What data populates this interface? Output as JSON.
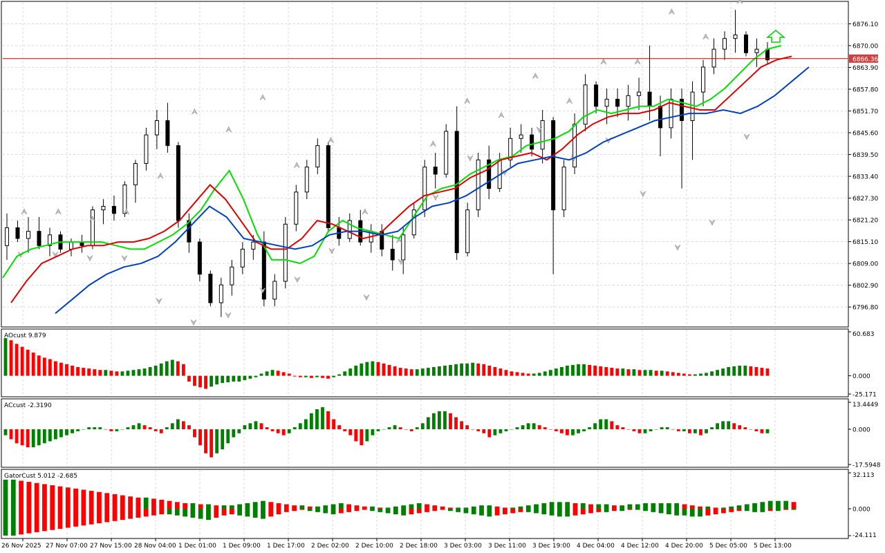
{
  "chart_data": [
    {
      "type": "candlestick",
      "pane": "main",
      "ylim": [
        6791.6,
        6882.0
      ],
      "price_ticks": [
        "6876.10",
        "6870.00",
        "6863.90",
        "6857.80",
        "6851.70",
        "6845.60",
        "6839.50",
        "6833.40",
        "6827.30",
        "6821.20",
        "6815.10",
        "6809.00",
        "6802.90",
        "6796.80"
      ],
      "current_price": "6866.36",
      "grid": true,
      "series": [
        {
          "name": "",
          "color": "#00e000",
          "values": [
            6805,
            6811,
            6813,
            6814,
            6815,
            6815,
            6815,
            6815,
            6814,
            6813,
            6813,
            6815,
            6817,
            6820,
            6824,
            6830,
            6835,
            6827,
            6817,
            6810,
            6810,
            6809,
            6811,
            6818,
            6821,
            6819,
            6818,
            6817,
            6816,
            6822,
            6828,
            6830,
            6831,
            6834,
            6836,
            6838,
            6839,
            6842,
            6843,
            6844,
            6846,
            6850,
            6852,
            6851,
            6852,
            6853,
            6853,
            6855,
            6854,
            6853,
            6855,
            6858,
            6862,
            6866,
            6869,
            6870
          ]
        },
        {
          "name": "",
          "color": "#e00000",
          "values": [
            6798,
            6804,
            6809,
            6811,
            6813,
            6814,
            6814,
            6815,
            6815,
            6816,
            6818,
            6821,
            6826,
            6831,
            6827,
            6821,
            6815,
            6813,
            6813,
            6816,
            6821,
            6820,
            6818,
            6816,
            6817,
            6821,
            6825,
            6828,
            6829,
            6830,
            6833,
            6835,
            6838,
            6839,
            6840,
            6838,
            6841,
            6845,
            6848,
            6850,
            6851,
            6851,
            6852,
            6854,
            6853,
            6852,
            6852,
            6856,
            6860,
            6864,
            6866,
            6867
          ]
        },
        {
          "name": "",
          "color": "#0040c0",
          "values": [
            6795,
            6799,
            6803,
            6806,
            6808,
            6809,
            6811,
            6815,
            6820,
            6825,
            6822,
            6816,
            6815,
            6814,
            6813,
            6814,
            6817,
            6818,
            6818,
            6817,
            6818,
            6822,
            6825,
            6826,
            6828,
            6831,
            6834,
            6837,
            6838,
            6839,
            6838,
            6840,
            6843,
            6845,
            6847,
            6849,
            6850,
            6851,
            6851,
            6852,
            6851,
            6853,
            6856,
            6860,
            6864
          ]
        }
      ],
      "candles": [
        {
          "o": 6814,
          "h": 6823,
          "l": 6810,
          "c": 6819
        },
        {
          "o": 6819,
          "h": 6821,
          "l": 6815,
          "c": 6816
        },
        {
          "o": 6816,
          "h": 6822,
          "l": 6812,
          "c": 6818
        },
        {
          "o": 6818,
          "h": 6822,
          "l": 6813,
          "c": 6814
        },
        {
          "o": 6814,
          "h": 6819,
          "l": 6811,
          "c": 6817
        },
        {
          "o": 6817,
          "h": 6818,
          "l": 6812,
          "c": 6813
        },
        {
          "o": 6813,
          "h": 6816,
          "l": 6811,
          "c": 6815
        },
        {
          "o": 6815,
          "h": 6817,
          "l": 6812,
          "c": 6814
        },
        {
          "o": 6814,
          "h": 6825,
          "l": 6813,
          "c": 6824
        },
        {
          "o": 6824,
          "h": 6827,
          "l": 6820,
          "c": 6825
        },
        {
          "o": 6825,
          "h": 6828,
          "l": 6821,
          "c": 6823
        },
        {
          "o": 6823,
          "h": 6832,
          "l": 6822,
          "c": 6831
        },
        {
          "o": 6831,
          "h": 6838,
          "l": 6826,
          "c": 6837
        },
        {
          "o": 6837,
          "h": 6847,
          "l": 6835,
          "c": 6845
        },
        {
          "o": 6845,
          "h": 6852,
          "l": 6841,
          "c": 6849
        },
        {
          "o": 6849,
          "h": 6854,
          "l": 6840,
          "c": 6842
        },
        {
          "o": 6842,
          "h": 6843,
          "l": 6819,
          "c": 6821
        },
        {
          "o": 6821,
          "h": 6823,
          "l": 6812,
          "c": 6815
        },
        {
          "o": 6815,
          "h": 6816,
          "l": 6804,
          "c": 6806
        },
        {
          "o": 6806,
          "h": 6807,
          "l": 6797,
          "c": 6798
        },
        {
          "o": 6798,
          "h": 6805,
          "l": 6794,
          "c": 6803
        },
        {
          "o": 6803,
          "h": 6810,
          "l": 6800,
          "c": 6808
        },
        {
          "o": 6808,
          "h": 6815,
          "l": 6806,
          "c": 6813
        },
        {
          "o": 6813,
          "h": 6817,
          "l": 6810,
          "c": 6815
        },
        {
          "o": 6815,
          "h": 6818,
          "l": 6797,
          "c": 6799
        },
        {
          "o": 6799,
          "h": 6806,
          "l": 6797,
          "c": 6804
        },
        {
          "o": 6804,
          "h": 6822,
          "l": 6802,
          "c": 6820
        },
        {
          "o": 6820,
          "h": 6831,
          "l": 6818,
          "c": 6829
        },
        {
          "o": 6829,
          "h": 6838,
          "l": 6827,
          "c": 6836
        },
        {
          "o": 6836,
          "h": 6844,
          "l": 6834,
          "c": 6842
        },
        {
          "o": 6842,
          "h": 6843,
          "l": 6818,
          "c": 6819
        },
        {
          "o": 6819,
          "h": 6822,
          "l": 6814,
          "c": 6816
        },
        {
          "o": 6816,
          "h": 6823,
          "l": 6815,
          "c": 6821
        },
        {
          "o": 6821,
          "h": 6824,
          "l": 6814,
          "c": 6815
        },
        {
          "o": 6815,
          "h": 6820,
          "l": 6812,
          "c": 6818
        },
        {
          "o": 6818,
          "h": 6820,
          "l": 6811,
          "c": 6813
        },
        {
          "o": 6813,
          "h": 6817,
          "l": 6807,
          "c": 6810
        },
        {
          "o": 6810,
          "h": 6819,
          "l": 6806,
          "c": 6817
        },
        {
          "o": 6817,
          "h": 6826,
          "l": 6816,
          "c": 6824
        },
        {
          "o": 6824,
          "h": 6838,
          "l": 6822,
          "c": 6836
        },
        {
          "o": 6836,
          "h": 6840,
          "l": 6830,
          "c": 6834
        },
        {
          "o": 6834,
          "h": 6848,
          "l": 6833,
          "c": 6846
        },
        {
          "o": 6846,
          "h": 6853,
          "l": 6810,
          "c": 6812
        },
        {
          "o": 6812,
          "h": 6826,
          "l": 6811,
          "c": 6824
        },
        {
          "o": 6824,
          "h": 6840,
          "l": 6822,
          "c": 6838
        },
        {
          "o": 6838,
          "h": 6842,
          "l": 6827,
          "c": 6830
        },
        {
          "o": 6830,
          "h": 6840,
          "l": 6829,
          "c": 6838
        },
        {
          "o": 6838,
          "h": 6847,
          "l": 6836,
          "c": 6844
        },
        {
          "o": 6844,
          "h": 6848,
          "l": 6840,
          "c": 6845
        },
        {
          "o": 6845,
          "h": 6847,
          "l": 6839,
          "c": 6841
        },
        {
          "o": 6841,
          "h": 6852,
          "l": 6837,
          "c": 6849
        },
        {
          "o": 6849,
          "h": 6850,
          "l": 6806,
          "c": 6824
        },
        {
          "o": 6824,
          "h": 6838,
          "l": 6822,
          "c": 6836
        },
        {
          "o": 6836,
          "h": 6851,
          "l": 6834,
          "c": 6848
        },
        {
          "o": 6848,
          "h": 6862,
          "l": 6846,
          "c": 6859
        },
        {
          "o": 6859,
          "h": 6860,
          "l": 6851,
          "c": 6853
        },
        {
          "o": 6853,
          "h": 6858,
          "l": 6848,
          "c": 6855
        },
        {
          "o": 6855,
          "h": 6858,
          "l": 6850,
          "c": 6853
        },
        {
          "o": 6853,
          "h": 6859,
          "l": 6849,
          "c": 6856
        },
        {
          "o": 6856,
          "h": 6861,
          "l": 6852,
          "c": 6857
        },
        {
          "o": 6857,
          "h": 6870,
          "l": 6849,
          "c": 6853
        },
        {
          "o": 6853,
          "h": 6856,
          "l": 6839,
          "c": 6847
        },
        {
          "o": 6847,
          "h": 6858,
          "l": 6844,
          "c": 6855
        },
        {
          "o": 6855,
          "h": 6858,
          "l": 6830,
          "c": 6849
        },
        {
          "o": 6849,
          "h": 6860,
          "l": 6838,
          "c": 6857
        },
        {
          "o": 6857,
          "h": 6866,
          "l": 6853,
          "c": 6864
        },
        {
          "o": 6864,
          "h": 6872,
          "l": 6862,
          "c": 6869
        },
        {
          "o": 6869,
          "h": 6874,
          "l": 6866,
          "c": 6872
        },
        {
          "o": 6872,
          "h": 6880,
          "l": 6868,
          "c": 6873
        },
        {
          "o": 6873,
          "h": 6874,
          "l": 6867,
          "c": 6868
        },
        {
          "o": 6868,
          "h": 6872,
          "l": 6864,
          "c": 6869
        },
        {
          "o": 6869,
          "h": 6871,
          "l": 6865,
          "c": 6866
        }
      ],
      "fractals": {
        "up": [
          6822,
          6822,
          6820,
          6822,
          6832,
          6850,
          6845,
          6854,
          6835,
          6842,
          6822,
          6814,
          6841,
          6853,
          6849,
          6860,
          6853,
          6864,
          6864,
          6878,
          6871,
          6881
        ],
        "down": [
          6813,
          6813,
          6812,
          6812,
          6800,
          6794,
          6796,
          6803,
          6806,
          6814,
          6801,
          6811,
          6829,
          6840,
          6836,
          6848,
          6840,
          6845,
          6830,
          6815,
          6822,
          6846
        ]
      },
      "signal_arrow": "up"
    },
    {
      "type": "bar",
      "pane": "ao",
      "title": "AOcust 9.879",
      "ylim": [
        -25.171,
        60.683
      ],
      "ticks": [
        "60.683",
        "0.000",
        "-25.171"
      ],
      "values": [
        52,
        49,
        44,
        40,
        36,
        32,
        28,
        25,
        23,
        20,
        18,
        16,
        14,
        12,
        11,
        10,
        9,
        8,
        8,
        7,
        6,
        6,
        7,
        8,
        9,
        10,
        12,
        14,
        17,
        20,
        22,
        20,
        16,
        -8,
        -14,
        -16,
        -18,
        -15,
        -12,
        -10,
        -9,
        -8,
        -8,
        -6,
        -4,
        -2,
        3,
        6,
        8,
        7,
        5,
        3,
        -1,
        -2,
        -2,
        -3,
        -2,
        -3,
        -4,
        -2,
        2,
        6,
        10,
        14,
        17,
        19,
        20,
        19,
        17,
        15,
        13,
        11,
        10,
        9,
        9,
        10,
        11,
        12,
        13,
        14,
        15,
        16,
        17,
        17,
        18,
        17,
        16,
        14,
        12,
        10,
        8,
        6,
        5,
        4,
        3,
        3,
        4,
        6,
        8,
        10,
        12,
        14,
        15,
        16,
        16,
        15,
        14,
        13,
        12,
        11,
        10,
        10,
        9,
        9,
        8,
        8,
        8,
        7,
        7,
        6,
        5,
        4,
        3,
        2,
        2,
        3,
        4,
        6,
        8,
        10,
        12,
        13,
        14,
        14,
        13,
        12,
        11,
        10
      ],
      "colors": "green-up red-down"
    },
    {
      "type": "bar",
      "pane": "ac",
      "title": "ACcust -2.3190",
      "ylim": [
        -17.5948,
        13.4449
      ],
      "ticks": [
        "13.4449",
        "0.000",
        "-17.5948"
      ],
      "values": [
        -3,
        -5,
        -7,
        -8,
        -9,
        -9,
        -8,
        -7,
        -6,
        -5,
        -4,
        -3,
        -2,
        -1,
        0,
        1,
        1,
        1,
        0,
        -1,
        -1,
        0,
        1,
        2,
        3,
        2,
        1,
        -1,
        -2,
        1,
        3,
        5,
        4,
        2,
        -4,
        -8,
        -12,
        -14,
        -12,
        -10,
        -7,
        -4,
        -2,
        2,
        3,
        4,
        3,
        1,
        -1,
        -2,
        -3,
        -2,
        1,
        3,
        5,
        8,
        10,
        11,
        9,
        5,
        2,
        -1,
        -3,
        -6,
        -8,
        -6,
        -3,
        -1,
        0,
        1,
        2,
        1,
        0,
        -1,
        1,
        3,
        6,
        8,
        9,
        9,
        8,
        6,
        4,
        2,
        0,
        -1,
        -2,
        -4,
        -3,
        -2,
        -1,
        0,
        1,
        2,
        3,
        3,
        2,
        1,
        0,
        -1,
        -2,
        -3,
        -3,
        -2,
        -1,
        1,
        3,
        5,
        5,
        4,
        2,
        1,
        0,
        -1,
        -2,
        -2,
        -1,
        0,
        1,
        1,
        0,
        -1,
        -1,
        -2,
        -2,
        -3,
        -2,
        1,
        3,
        4,
        4,
        3,
        2,
        1,
        0,
        -1,
        -2,
        -2
      ],
      "colors": "green-up red-down"
    },
    {
      "type": "bar",
      "pane": "gator",
      "title": "GatorCust 5.012 -2.685",
      "ylim": [
        -24.111,
        32.113
      ],
      "ticks": [
        "32.113",
        "0.000",
        "-24.111"
      ],
      "upper": [
        26,
        26,
        25,
        24,
        23,
        22,
        21,
        20,
        19,
        18,
        17,
        16,
        15,
        14,
        13,
        12,
        11,
        10,
        10,
        9,
        8,
        7,
        6,
        5,
        5,
        4,
        4,
        3,
        3,
        3,
        4,
        5,
        6,
        7,
        6,
        5,
        4,
        3,
        3,
        2,
        2,
        3,
        4,
        5,
        4,
        3,
        2,
        2,
        1,
        1,
        2,
        3,
        4,
        5,
        4,
        3,
        2,
        1,
        1,
        1,
        2,
        3,
        3,
        2,
        1,
        1,
        2,
        3,
        4,
        5,
        6,
        6,
        6,
        5,
        5,
        4,
        4,
        4,
        3,
        3,
        4,
        4,
        5,
        5,
        5,
        5,
        5,
        4,
        3,
        2,
        2,
        1,
        1,
        2,
        3,
        4,
        5,
        6,
        7,
        7,
        7,
        6
      ],
      "lower": [
        -24,
        -24,
        -23,
        -22,
        -21,
        -20,
        -19,
        -18,
        -17,
        -16,
        -15,
        -14,
        -13,
        -12,
        -11,
        -10,
        -9,
        -8,
        -7,
        -6,
        -5,
        -5,
        -6,
        -7,
        -8,
        -9,
        -10,
        -8,
        -6,
        -5,
        -6,
        -7,
        -8,
        -9,
        -7,
        -5,
        -3,
        -2,
        -1,
        -2,
        -3,
        -4,
        -5,
        -4,
        -3,
        -2,
        -1,
        -2,
        -3,
        -4,
        -5,
        -6,
        -5,
        -4,
        -3,
        -2,
        -1,
        -2,
        -3,
        -4,
        -5,
        -6,
        -7,
        -6,
        -5,
        -4,
        -3,
        -3,
        -4,
        -5,
        -6,
        -7,
        -7,
        -6,
        -5,
        -4,
        -3,
        -3,
        -2,
        -2,
        -1,
        -1,
        -2,
        -3,
        -4,
        -5,
        -6,
        -6,
        -7,
        -7,
        -6,
        -5,
        -4,
        -3,
        -2,
        -2,
        -3,
        -3,
        -2,
        -2,
        -1,
        -1
      ],
      "colors": "green-up red-down"
    }
  ],
  "time_axis": [
    "26 Nov 2025",
    "27 Nov 07:00",
    "27 Nov 15:00",
    "28 Nov 04:00",
    "1 Dec 01:00",
    "1 Dec 09:00",
    "1 Dec 17:00",
    "2 Dec 02:00",
    "2 Dec 10:00",
    "2 Dec 18:00",
    "3 Dec 03:00",
    "3 Dec 11:00",
    "3 Dec 19:00",
    "4 Dec 04:00",
    "4 Dec 12:00",
    "4 Dec 20:00",
    "5 Dec 05:00",
    "5 Dec 13:00"
  ],
  "colors": {
    "bull": "#008000",
    "bear": "#ff0000",
    "grid": "#d8d8d8",
    "price_line": "#c00000",
    "price_badge": "#d04040"
  }
}
